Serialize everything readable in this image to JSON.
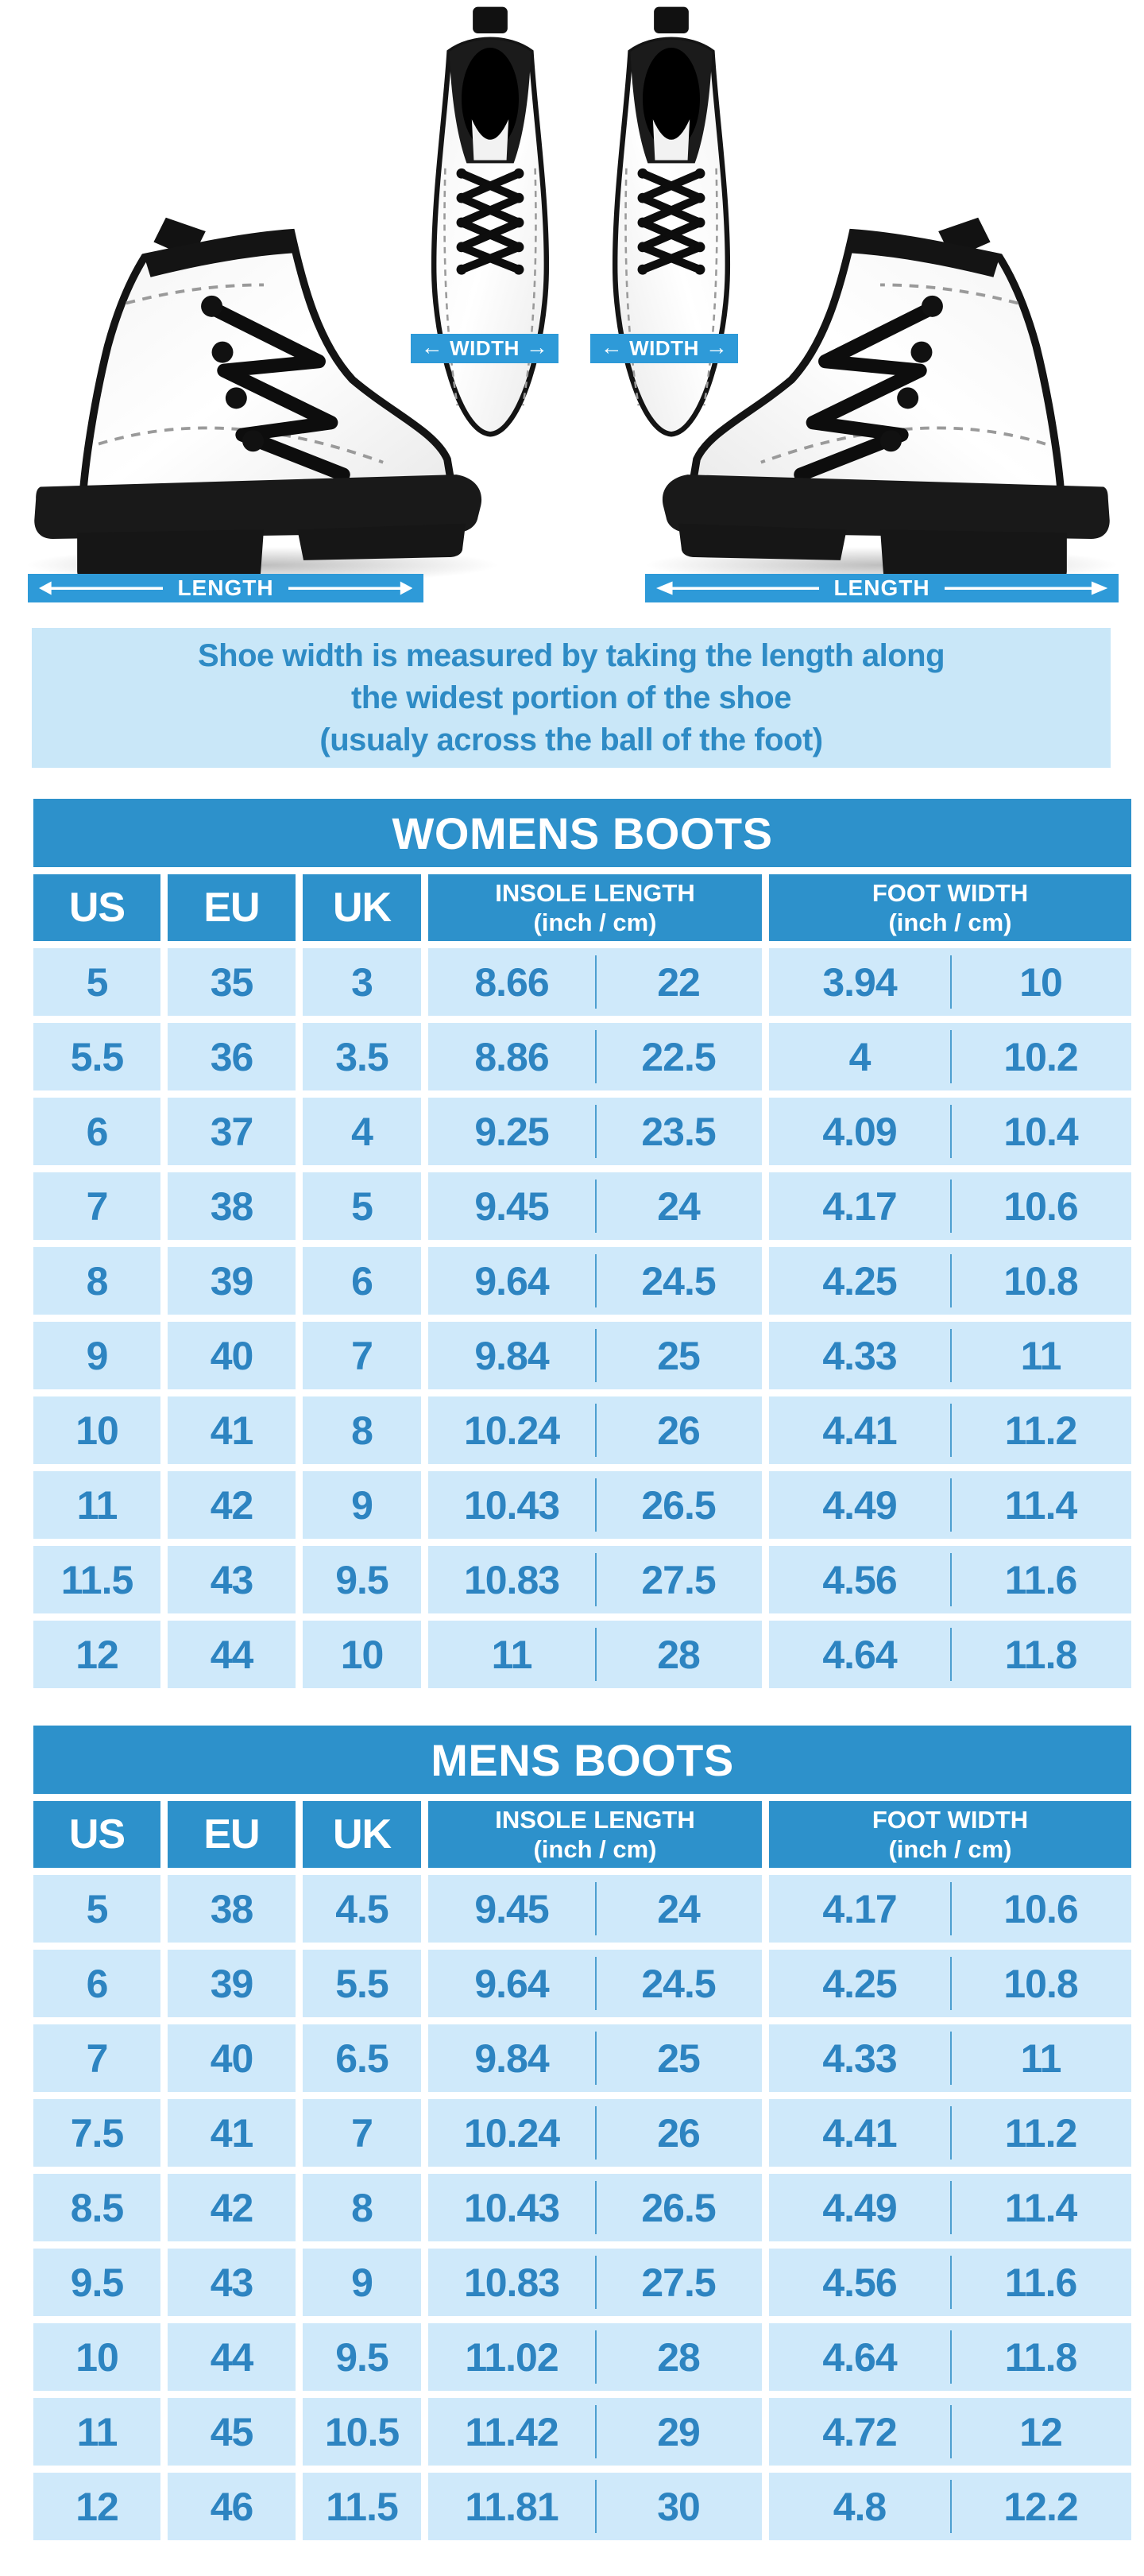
{
  "colors": {
    "primary_blue": "#2D91CB",
    "ribbon_blue": "#2E9AD8",
    "row_background": "#CFE9FA",
    "note_background": "#C9E7F8",
    "value_text_blue": "#2D84C1"
  },
  "diagram": {
    "width_label": "WIDTH",
    "length_label": "LENGTH"
  },
  "note": {
    "line1": "Shoe width is measured by taking the length along",
    "line2": "the widest portion of the shoe",
    "line3": "(usualy across the ball of the foot)"
  },
  "chart_data": [
    {
      "type": "table",
      "title": "WOMENS BOOTS",
      "header": {
        "us": "US",
        "eu": "EU",
        "uk": "UK",
        "insole_title": "INSOLE LENGTH",
        "insole_sub": "(inch / cm)",
        "foot_title": "FOOT WIDTH",
        "foot_sub": "(inch / cm)"
      },
      "rows": [
        [
          "5",
          "35",
          "3",
          "8.66",
          "22",
          "3.94",
          "10"
        ],
        [
          "5.5",
          "36",
          "3.5",
          "8.86",
          "22.5",
          "4",
          "10.2"
        ],
        [
          "6",
          "37",
          "4",
          "9.25",
          "23.5",
          "4.09",
          "10.4"
        ],
        [
          "7",
          "38",
          "5",
          "9.45",
          "24",
          "4.17",
          "10.6"
        ],
        [
          "8",
          "39",
          "6",
          "9.64",
          "24.5",
          "4.25",
          "10.8"
        ],
        [
          "9",
          "40",
          "7",
          "9.84",
          "25",
          "4.33",
          "11"
        ],
        [
          "10",
          "41",
          "8",
          "10.24",
          "26",
          "4.41",
          "11.2"
        ],
        [
          "11",
          "42",
          "9",
          "10.43",
          "26.5",
          "4.49",
          "11.4"
        ],
        [
          "11.5",
          "43",
          "9.5",
          "10.83",
          "27.5",
          "4.56",
          "11.6"
        ],
        [
          "12",
          "44",
          "10",
          "11",
          "28",
          "4.64",
          "11.8"
        ]
      ]
    },
    {
      "type": "table",
      "title": "MENS BOOTS",
      "header": {
        "us": "US",
        "eu": "EU",
        "uk": "UK",
        "insole_title": "INSOLE LENGTH",
        "insole_sub": "(inch / cm)",
        "foot_title": "FOOT WIDTH",
        "foot_sub": "(inch / cm)"
      },
      "rows": [
        [
          "5",
          "38",
          "4.5",
          "9.45",
          "24",
          "4.17",
          "10.6"
        ],
        [
          "6",
          "39",
          "5.5",
          "9.64",
          "24.5",
          "4.25",
          "10.8"
        ],
        [
          "7",
          "40",
          "6.5",
          "9.84",
          "25",
          "4.33",
          "11"
        ],
        [
          "7.5",
          "41",
          "7",
          "10.24",
          "26",
          "4.41",
          "11.2"
        ],
        [
          "8.5",
          "42",
          "8",
          "10.43",
          "26.5",
          "4.49",
          "11.4"
        ],
        [
          "9.5",
          "43",
          "9",
          "10.83",
          "27.5",
          "4.56",
          "11.6"
        ],
        [
          "10",
          "44",
          "9.5",
          "11.02",
          "28",
          "4.64",
          "11.8"
        ],
        [
          "11",
          "45",
          "10.5",
          "11.42",
          "29",
          "4.72",
          "12"
        ],
        [
          "12",
          "46",
          "11.5",
          "11.81",
          "30",
          "4.8",
          "12.2"
        ]
      ]
    }
  ]
}
